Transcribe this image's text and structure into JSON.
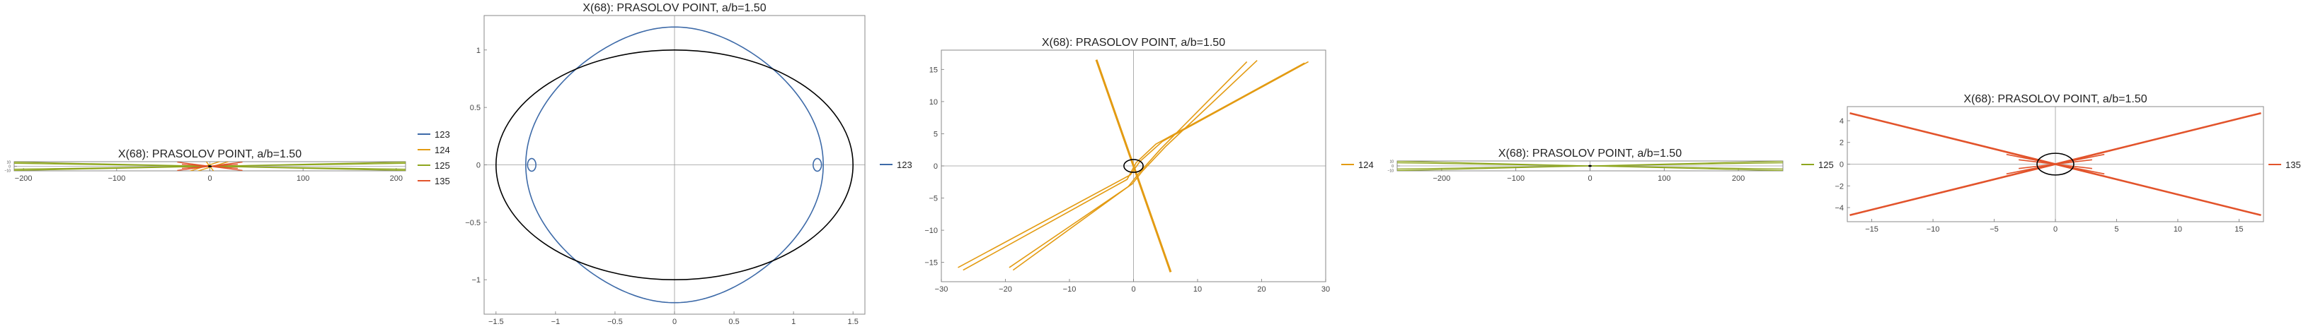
{
  "colors": {
    "ellipse": "#000000",
    "s123": "#3d6aa8",
    "s124": "#e39b12",
    "s125": "#8ea61e",
    "s135": "#e2532b"
  },
  "chart_data": [
    {
      "type": "line",
      "title": "X(68): PRASOLOV POINT, a/b=1.50",
      "xlim": [
        -210,
        210
      ],
      "ylim": [
        -11,
        11
      ],
      "xticks": [
        -200,
        -100,
        0,
        100,
        200
      ],
      "yticks": [
        -10,
        0,
        10
      ],
      "legend": [
        "123",
        "124",
        "125",
        "135"
      ],
      "legend_placement": "right",
      "series": [
        {
          "name": "123",
          "color": "s123",
          "kind": "quartic",
          "width": 1.2
        },
        {
          "name": "124",
          "color": "s124",
          "kind": "lines",
          "lines": [
            [
              [
                -27.4,
                -15.8
              ],
              [
                17.7,
                16.2
              ]
            ],
            [
              [
                -19.4,
                -15.8
              ],
              [
                27.3,
                16.2
              ]
            ],
            [
              [
                -5.8,
                16.5
              ],
              [
                5.8,
                -16.5
              ]
            ]
          ]
        },
        {
          "name": "125",
          "color": "s125",
          "kind": "lines",
          "lines": [
            [
              [
                -210,
                10
              ],
              [
                210,
                -10
              ]
            ],
            [
              [
                -210,
                -10
              ],
              [
                210,
                10
              ]
            ],
            [
              [
                -210,
                7
              ],
              [
                210,
                -7
              ]
            ],
            [
              [
                -210,
                -7
              ],
              [
                210,
                7
              ]
            ]
          ]
        },
        {
          "name": "135",
          "color": "s135",
          "kind": "lines",
          "lines": [
            [
              [
                -35,
                10
              ],
              [
                35,
                -10
              ]
            ],
            [
              [
                -35,
                -10
              ],
              [
                35,
                10
              ]
            ],
            [
              [
                -30,
                5
              ],
              [
                30,
                -5
              ]
            ],
            [
              [
                -30,
                -5
              ],
              [
                30,
                5
              ]
            ]
          ]
        }
      ]
    },
    {
      "type": "line",
      "title": "X(68): PRASOLOV POINT, a/b=1.50",
      "xlim": [
        -1.6,
        1.6
      ],
      "ylim": [
        -1.3,
        1.3
      ],
      "xticks": [
        -1.5,
        -1.0,
        -0.5,
        0.0,
        0.5,
        1.0,
        1.5
      ],
      "yticks": [
        -1.0,
        -0.5,
        0.0,
        0.5,
        1.0
      ],
      "legend": [
        "123"
      ],
      "legend_placement": "right",
      "series": [
        {
          "name": "123",
          "color": "s123",
          "kind": "quartic",
          "width": 1.6
        }
      ]
    },
    {
      "type": "line",
      "title": "X(68): PRASOLOV POINT, a/b=1.50",
      "xlim": [
        -30,
        30
      ],
      "ylim": [
        -18,
        18
      ],
      "xticks": [
        -30,
        -20,
        -10,
        0,
        10,
        20,
        30
      ],
      "yticks": [
        -15,
        -10,
        -5,
        0,
        5,
        10,
        15
      ],
      "legend": [
        "124"
      ],
      "legend_placement": "right",
      "series": [
        {
          "name": "124",
          "color": "s124",
          "kind": "lines",
          "width": 1.6,
          "lines": [
            [
              [
                -27.4,
                -15.8
              ],
              [
                -0.5,
                -1.4
              ],
              [
                1.0,
                0.7
              ],
              [
                4.5,
                3.8
              ],
              [
                27.3,
                16.2
              ]
            ],
            [
              [
                -26.6,
                -16.2
              ],
              [
                -1.0,
                -2.1
              ],
              [
                0.4,
                0.5
              ],
              [
                3.5,
                3.4
              ],
              [
                26.7,
                16.0
              ]
            ],
            [
              [
                -19.4,
                -15.8
              ],
              [
                -0.2,
                -2.8
              ],
              [
                1.4,
                -0.8
              ],
              [
                5.0,
                3.0
              ],
              [
                19.3,
                16.4
              ]
            ],
            [
              [
                -18.8,
                -16.2
              ],
              [
                -0.8,
                -3.2
              ],
              [
                0.8,
                -1.2
              ],
              [
                4.2,
                2.6
              ],
              [
                17.7,
                16.2
              ]
            ]
          ]
        },
        {
          "name": "124",
          "color": "s124",
          "kind": "lines",
          "width": 3,
          "lines": [
            [
              [
                -5.8,
                16.5
              ],
              [
                5.8,
                -16.5
              ]
            ]
          ]
        }
      ]
    },
    {
      "type": "line",
      "title": "X(68): PRASOLOV POINT, a/b=1.50",
      "xlim": [
        -260,
        260
      ],
      "ylim": [
        -11,
        11
      ],
      "xticks": [
        -200,
        -100,
        0,
        100,
        200
      ],
      "yticks": [
        -10,
        0,
        10
      ],
      "legend": [
        "125"
      ],
      "legend_placement": "right",
      "series": [
        {
          "name": "125",
          "color": "s125",
          "kind": "lines",
          "width": 1.3,
          "lines": [
            [
              [
                -260,
                10.5
              ],
              [
                260,
                -10.5
              ]
            ],
            [
              [
                -260,
                -10.5
              ],
              [
                260,
                10.5
              ]
            ],
            [
              [
                -260,
                7
              ],
              [
                260,
                -7
              ]
            ],
            [
              [
                -260,
                -7
              ],
              [
                260,
                7
              ]
            ]
          ]
        }
      ]
    },
    {
      "type": "line",
      "title": "X(68): PRASOLOV POINT, a/b=1.50",
      "xlim": [
        -17,
        17
      ],
      "ylim": [
        -5.3,
        5.3
      ],
      "xticks": [
        -15,
        -10,
        -5,
        0,
        5,
        10,
        15
      ],
      "yticks": [
        -4,
        -2,
        0,
        2,
        4
      ],
      "legend": [
        "135"
      ],
      "legend_placement": "right",
      "series": [
        {
          "name": "135",
          "color": "s135",
          "kind": "lines",
          "width": 2.6,
          "lines": [
            [
              [
                -16.8,
                4.7
              ],
              [
                16.8,
                -4.7
              ]
            ],
            [
              [
                -16.8,
                -4.7
              ],
              [
                16.8,
                4.7
              ]
            ]
          ]
        },
        {
          "name": "135",
          "color": "s135",
          "kind": "lines",
          "width": 1.6,
          "lines": [
            [
              [
                -4.0,
                0.9
              ],
              [
                4.0,
                -0.9
              ]
            ],
            [
              [
                -4.0,
                -0.9
              ],
              [
                4.0,
                0.9
              ]
            ],
            [
              [
                -3.0,
                0.4
              ],
              [
                3.0,
                -0.4
              ]
            ],
            [
              [
                -3.0,
                -0.4
              ],
              [
                3.0,
                0.4
              ]
            ]
          ]
        }
      ]
    }
  ]
}
